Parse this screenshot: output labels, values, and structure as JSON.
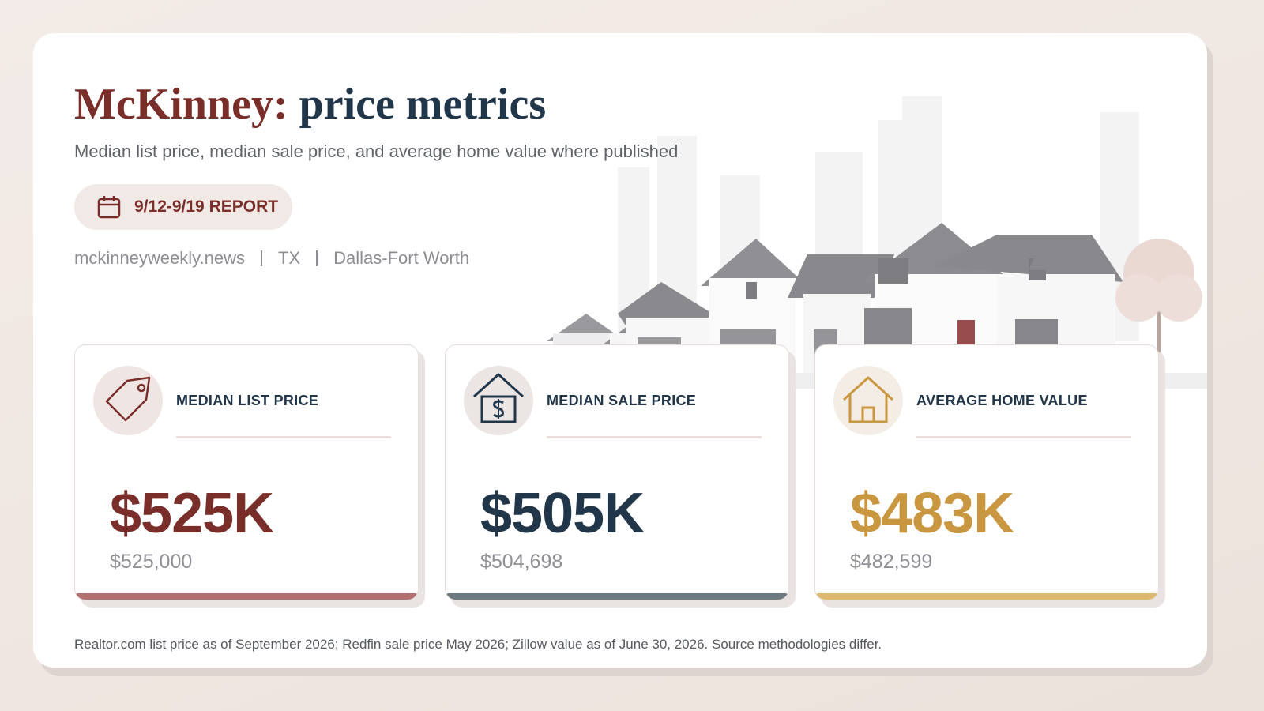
{
  "header": {
    "title_city": "McKinney:",
    "title_rest": "price metrics",
    "subtitle": "Median list price, median sale price, and average home value where published",
    "badge": "9/12-9/19 REPORT",
    "meta": [
      "mckinneyweekly.news",
      "TX",
      "Dallas-Fort Worth"
    ]
  },
  "cards": [
    {
      "label": "MEDIAN LIST PRICE",
      "value": "$525K",
      "exact": "$525,000"
    },
    {
      "label": "MEDIAN SALE PRICE",
      "value": "$505K",
      "exact": "$504,698"
    },
    {
      "label": "AVERAGE HOME VALUE",
      "value": "$483K",
      "exact": "$482,599"
    }
  ],
  "footer": {
    "note": "Realtor.com list price as of September 2026; Redfin sale price May 2026; Zillow value as of June 30, 2026. Source methodologies differ."
  }
}
